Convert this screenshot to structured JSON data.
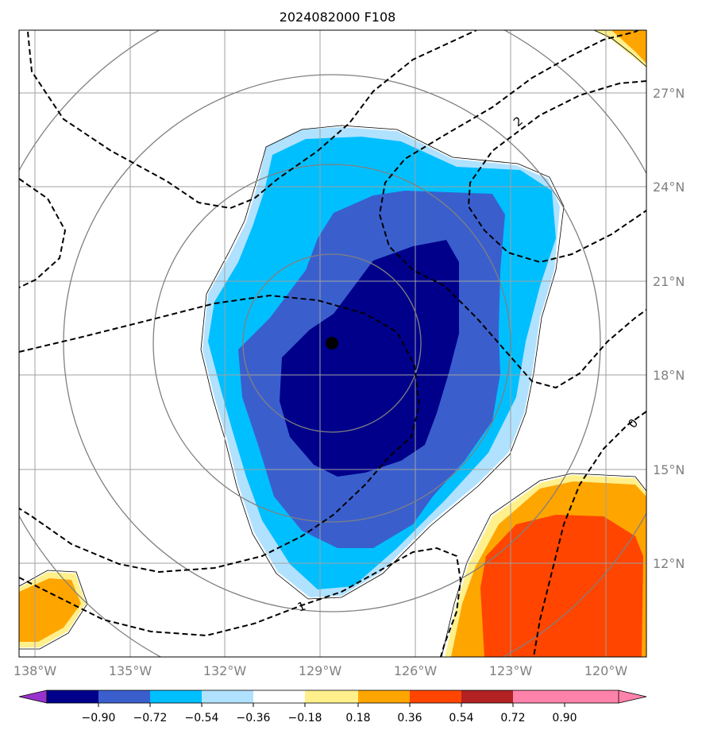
{
  "title": "2024082000 F108",
  "map": {
    "lon_labels": [
      "138°W",
      "135°W",
      "132°W",
      "129°W",
      "126°W",
      "123°W",
      "120°W"
    ],
    "lat_labels": [
      "27°N",
      "24°N",
      "21°N",
      "18°N",
      "15°N",
      "12°N"
    ],
    "contour_labels": [
      "2",
      "0",
      "1"
    ],
    "center_marker": "storm-center"
  },
  "colorbar": {
    "ticks": [
      "−0.90",
      "−0.72",
      "−0.54",
      "−0.36",
      "−0.18",
      "0.18",
      "0.36",
      "0.54",
      "0.72",
      "0.90"
    ],
    "colors": [
      "#9932cc",
      "#00008b",
      "#3a5fcd",
      "#00bfff",
      "#b0e2ff",
      "#ffffff",
      "#fff08c",
      "#ffa500",
      "#ff4500",
      "#b22222",
      "#ff82ab"
    ]
  }
}
